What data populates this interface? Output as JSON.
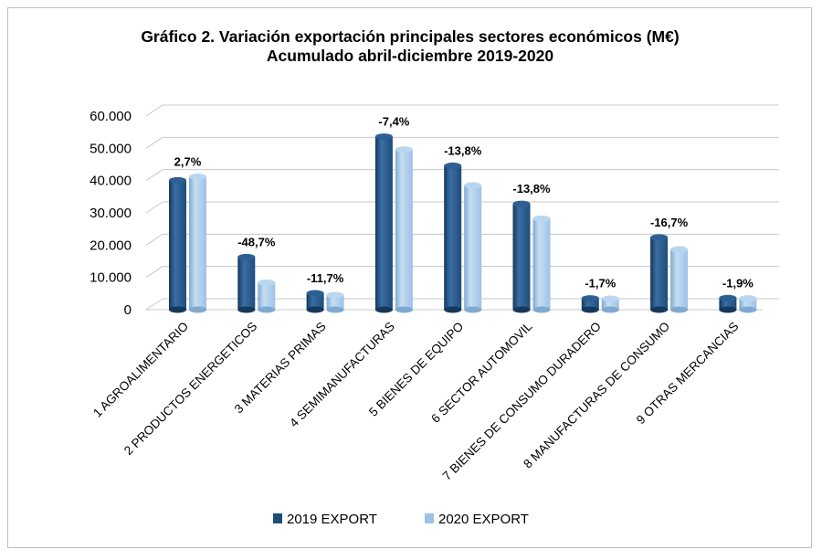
{
  "chart_data": {
    "type": "bar",
    "title": "Gráfico 2. Variación exportación principales sectores económicos (M€)",
    "subtitle": "Acumulado abril-diciembre 2019-2020",
    "categories": [
      "1 AGROALIMENTARIO",
      "2 PRODUCTOS ENERGETICOS",
      "3 MATERIAS PRIMAS",
      "4 SEMIMANUFACTURAS",
      "5 BIENES DE EQUIPO",
      "6 SECTOR AUTOMOVIL",
      "7 BIENES DE CONSUMO DURADERO",
      "8 MANUFACTURAS DE CONSUMO",
      "9 OTRAS MERCANCIAS"
    ],
    "series": [
      {
        "name": "2019 EXPORT",
        "color": "#1f4e79",
        "values": [
          40100,
          16300,
          5100,
          53600,
          44600,
          32800,
          3500,
          22400,
          3600
        ]
      },
      {
        "name": "2020 EXPORT",
        "color": "#9dc3e6",
        "values": [
          41200,
          8400,
          4500,
          49600,
          38500,
          28200,
          3400,
          18700,
          3500
        ]
      }
    ],
    "data_labels": [
      "2,7%",
      "-48,7%",
      "-11,7%",
      "-7,4%",
      "-13,8%",
      "-13,8%",
      "-1,7%",
      "-16,7%",
      "-1,9%"
    ],
    "yticks": [
      "0",
      "10.000",
      "20.000",
      "30.000",
      "40.000",
      "50.000",
      "60.000"
    ],
    "ylim": [
      0,
      60000
    ],
    "grid": true,
    "legend_position": "bottom",
    "xlabel": "",
    "ylabel": ""
  }
}
